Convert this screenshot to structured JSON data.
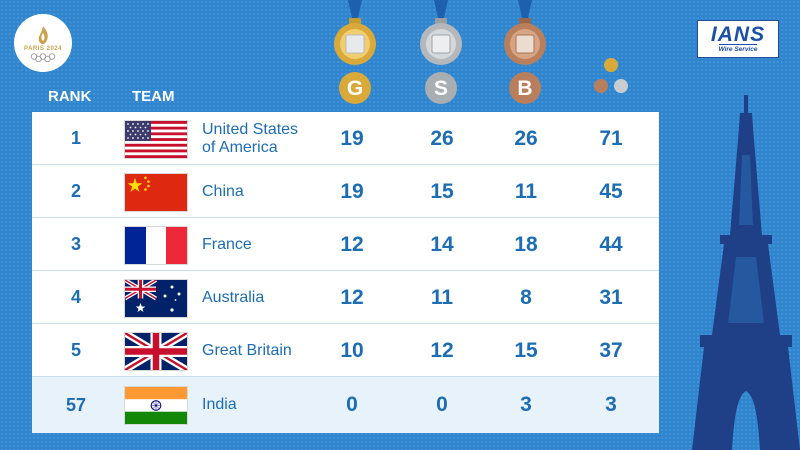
{
  "logos": {
    "paris_text": "PARIS 2024",
    "ians_text": "IANS",
    "ians_subtext": "Wire Service"
  },
  "headers": {
    "rank": "RANK",
    "team": "TEAM",
    "gold_letter": "G",
    "silver_letter": "S",
    "bronze_letter": "B"
  },
  "colors": {
    "background": "#2f86cf",
    "text_blue": "#1d6db4",
    "gold": "#d9a93a",
    "silver": "#a9aeb3",
    "bronze": "#b97e5c",
    "eiffel": "#1f3f86"
  },
  "rows": [
    {
      "rank": "1",
      "team": "United States of America",
      "team_line1": "United States",
      "team_line2": "of America",
      "flag": "usa-flag-icon",
      "gold": "19",
      "silver": "26",
      "bronze": "26",
      "total": "71"
    },
    {
      "rank": "2",
      "team": "China",
      "flag": "china-flag-icon",
      "gold": "19",
      "silver": "15",
      "bronze": "11",
      "total": "45"
    },
    {
      "rank": "3",
      "team": "France",
      "flag": "france-flag-icon",
      "gold": "12",
      "silver": "14",
      "bronze": "18",
      "total": "44"
    },
    {
      "rank": "4",
      "team": "Australia",
      "flag": "australia-flag-icon",
      "gold": "12",
      "silver": "11",
      "bronze": "8",
      "total": "31"
    },
    {
      "rank": "5",
      "team": "Great Britain",
      "flag": "uk-flag-icon",
      "gold": "10",
      "silver": "12",
      "bronze": "15",
      "total": "37"
    },
    {
      "rank": "57",
      "team": "India",
      "flag": "india-flag-icon",
      "gold": "0",
      "silver": "0",
      "bronze": "3",
      "total": "3"
    }
  ]
}
